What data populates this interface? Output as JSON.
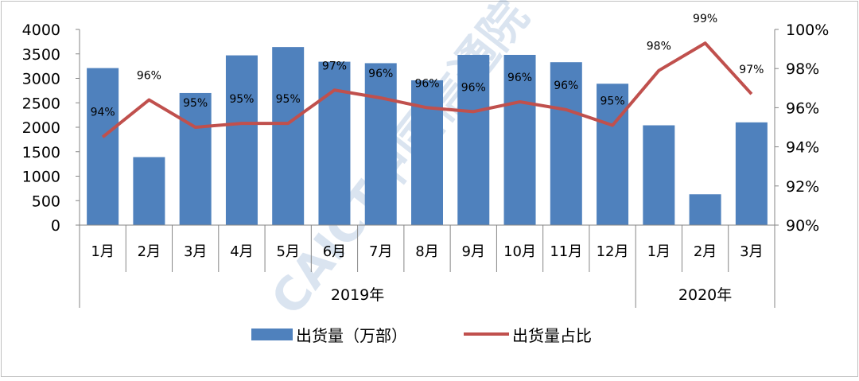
{
  "chart_data": {
    "type": "bar",
    "categories": [
      "1月",
      "2月",
      "3月",
      "4月",
      "5月",
      "6月",
      "7月",
      "8月",
      "9月",
      "10月",
      "11月",
      "12月",
      "1月",
      "2月",
      "3月"
    ],
    "groups": [
      {
        "label": "2019年",
        "span": 12
      },
      {
        "label": "2020年",
        "span": 3
      }
    ],
    "series": [
      {
        "name": "出货量（万部）",
        "type": "bar",
        "axis": "left",
        "color": "#4F81BD",
        "values": [
          3210,
          1390,
          2700,
          3470,
          3640,
          3340,
          3310,
          2960,
          3480,
          3480,
          3330,
          2890,
          2040,
          630,
          2100
        ]
      },
      {
        "name": "出货量占比",
        "type": "line",
        "axis": "right",
        "color": "#C0504D",
        "values": [
          94.5,
          96.4,
          95.0,
          95.2,
          95.2,
          96.9,
          96.5,
          96.0,
          95.8,
          96.3,
          95.9,
          95.1,
          97.9,
          99.3,
          96.7
        ],
        "data_labels": [
          "94%",
          "96%",
          "95%",
          "95%",
          "95%",
          "97%",
          "96%",
          "96%",
          "96%",
          "96%",
          "96%",
          "95%",
          "98%",
          "99%",
          "97%"
        ]
      }
    ],
    "y_left": {
      "ylim": [
        0,
        4000
      ],
      "ticks": [
        "0",
        "500",
        "1000",
        "1500",
        "2000",
        "2500",
        "3000",
        "3500",
        "4000"
      ]
    },
    "y_right": {
      "ylim": [
        90,
        100
      ],
      "ticks": [
        "90%",
        "92%",
        "94%",
        "96%",
        "98%",
        "100%"
      ]
    },
    "legend_position": "bottom"
  },
  "watermark": "CAICT中国信通院"
}
